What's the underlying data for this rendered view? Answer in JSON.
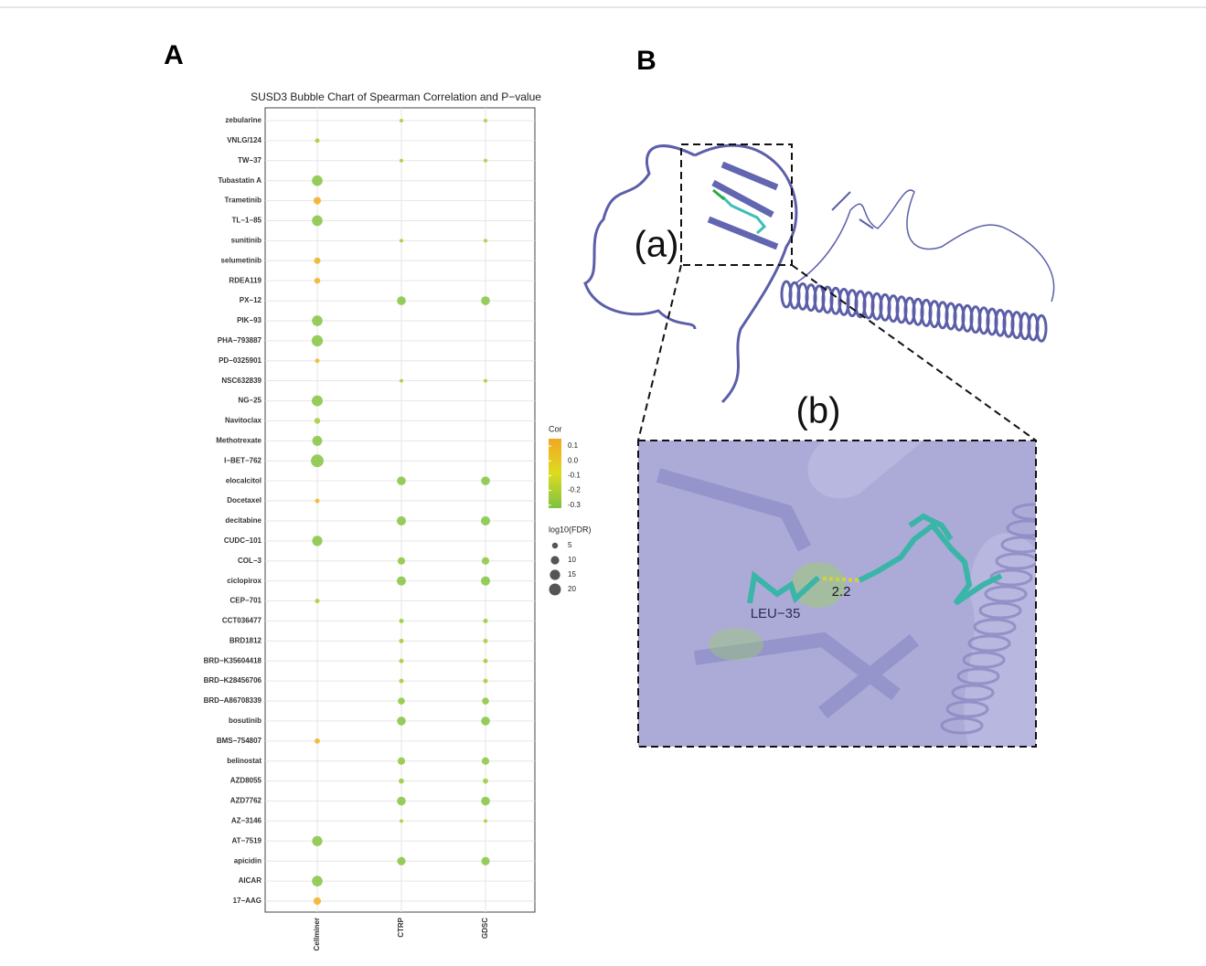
{
  "panel_a": {
    "label": "A",
    "chart_data": {
      "type": "bubble",
      "title": "SUSD3 Bubble Chart of Spearman Correlation and P−value",
      "categories": [
        "zebularine",
        "VNLG/124",
        "TW−37",
        "Tubastatin A",
        "Trametinib",
        "TL−1−85",
        "sunitinib",
        "selumetinib",
        "RDEA119",
        "PX−12",
        "PIK−93",
        "PHA−793887",
        "PD−0325901",
        "NSC632839",
        "NG−25",
        "Navitoclax",
        "Methotrexate",
        "I−BET−762",
        "elocalcitol",
        "Docetaxel",
        "decitabine",
        "CUDC−101",
        "COL−3",
        "ciclopirox",
        "CEP−701",
        "CCT036477",
        "BRD1812",
        "BRD−K35604418",
        "BRD−K28456706",
        "BRD−A86708339",
        "bosutinib",
        "BMS−754807",
        "belinostat",
        "AZD8055",
        "AZD7762",
        "AZ−3146",
        "AT−7519",
        "apicidin",
        "AICAR",
        "17−AAG"
      ],
      "series": [
        {
          "name": "Cellminer",
          "values": [
            null,
            -0.22,
            null,
            -0.3,
            0.12,
            -0.3,
            null,
            0.1,
            0.1,
            null,
            -0.3,
            -0.3,
            0.08,
            null,
            -0.3,
            -0.22,
            -0.3,
            -0.3,
            null,
            0.08,
            null,
            -0.3,
            null,
            null,
            -0.22,
            null,
            null,
            null,
            null,
            null,
            null,
            0.1,
            null,
            null,
            null,
            null,
            -0.3,
            null,
            -0.3,
            0.1
          ],
          "sizes": [
            null,
            3,
            null,
            16,
            8,
            16,
            null,
            6,
            5,
            null,
            16,
            18,
            3,
            null,
            17,
            5,
            14,
            23,
            null,
            3,
            null,
            15,
            null,
            null,
            3,
            null,
            null,
            null,
            null,
            null,
            null,
            4,
            null,
            null,
            null,
            null,
            15,
            null,
            16,
            8
          ]
        },
        {
          "name": "CTRP",
          "values": [
            -0.22,
            null,
            -0.22,
            null,
            null,
            null,
            -0.22,
            null,
            null,
            -0.3,
            null,
            null,
            null,
            -0.22,
            null,
            null,
            null,
            null,
            -0.3,
            null,
            -0.3,
            null,
            -0.28,
            -0.3,
            null,
            -0.25,
            -0.22,
            -0.22,
            -0.22,
            -0.28,
            -0.3,
            null,
            -0.28,
            -0.25,
            -0.3,
            -0.2,
            null,
            -0.3,
            null,
            null
          ],
          "sizes": [
            2,
            null,
            2,
            null,
            null,
            null,
            2,
            null,
            null,
            11,
            null,
            null,
            null,
            2,
            null,
            null,
            null,
            null,
            11,
            null,
            12,
            null,
            8,
            12,
            null,
            3,
            3,
            3,
            3,
            7,
            11,
            null,
            8,
            4,
            11,
            2,
            null,
            10,
            null,
            null
          ]
        },
        {
          "name": "GDSC",
          "values": [
            -0.22,
            null,
            -0.22,
            null,
            null,
            null,
            -0.22,
            null,
            null,
            -0.3,
            null,
            null,
            null,
            -0.22,
            null,
            null,
            null,
            null,
            -0.3,
            null,
            -0.3,
            null,
            -0.28,
            -0.3,
            null,
            -0.25,
            -0.22,
            -0.22,
            -0.22,
            -0.28,
            -0.3,
            null,
            -0.28,
            -0.25,
            -0.3,
            -0.2,
            null,
            -0.3,
            null,
            null
          ],
          "sizes": [
            2,
            null,
            2,
            null,
            null,
            null,
            2,
            null,
            null,
            11,
            null,
            null,
            null,
            2,
            null,
            null,
            null,
            null,
            11,
            null,
            12,
            null,
            8,
            12,
            null,
            3,
            3,
            3,
            3,
            7,
            11,
            null,
            8,
            4,
            11,
            2,
            null,
            10,
            null,
            null
          ]
        }
      ],
      "color_title": "Cor",
      "clim": [
        -0.32,
        0.15
      ],
      "colors": [
        "#7cc242",
        "#dcdc1e",
        "#f5a623"
      ],
      "color_ticks": [
        0.1,
        {
          "value": 0,
          "label": "0.0"
        },
        -0.1,
        -0.2,
        -0.3
      ],
      "size_title": "log10(FDR)",
      "size_ticks": [
        5,
        10,
        15,
        20
      ],
      "grid": true
    }
  },
  "panel_b": {
    "label": "B",
    "inset_a": "(a)",
    "inset_b": "(b)",
    "residue": "LEU−35",
    "distance": 2.2
  }
}
